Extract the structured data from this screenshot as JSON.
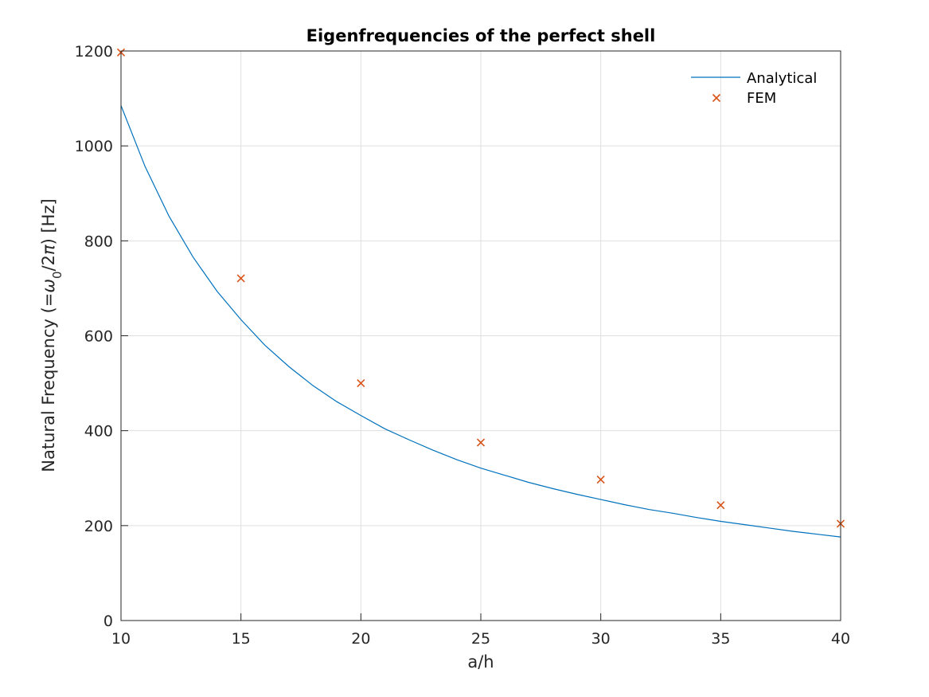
{
  "chart_data": {
    "type": "line",
    "title": "Eigenfrequencies of the perfect shell",
    "xlabel": "a/h",
    "ylabel_prefix": "Natural Frequency (=",
    "ylabel_omega": "ω",
    "ylabel_sub": "0",
    "ylabel_mid": "/2",
    "ylabel_pi": "π",
    "ylabel_suffix": ") [Hz]",
    "xlim": [
      10,
      40
    ],
    "ylim": [
      0,
      1200
    ],
    "xticks": [
      10,
      15,
      20,
      25,
      30,
      35,
      40
    ],
    "yticks": [
      0,
      200,
      400,
      600,
      800,
      1000,
      1200
    ],
    "xtick_labels": [
      "10",
      "15",
      "20",
      "25",
      "30",
      "35",
      "40"
    ],
    "ytick_labels": [
      "0",
      "200",
      "400",
      "600",
      "800",
      "1000",
      "1200"
    ],
    "grid": true,
    "legend_position": "top-right",
    "series": [
      {
        "name": "Analytical",
        "kind": "line",
        "color": "#0072BD",
        "x": [
          10,
          11,
          12,
          13,
          14,
          15,
          16,
          17,
          18,
          19,
          20,
          21,
          22,
          23,
          24,
          25,
          26,
          27,
          28,
          29,
          30,
          31,
          32,
          33,
          34,
          35,
          36,
          37,
          38,
          39,
          40
        ],
        "y": [
          1085,
          957,
          852,
          766,
          694,
          634,
          580,
          535,
          495,
          461,
          432,
          404,
          381,
          359,
          339,
          321,
          306,
          291,
          278,
          266,
          255,
          244,
          234,
          226,
          217,
          209,
          202,
          195,
          188,
          182,
          176
        ]
      },
      {
        "name": "FEM",
        "kind": "scatter",
        "marker": "x",
        "color": "#D95319",
        "x": [
          10,
          15,
          20,
          25,
          30,
          35,
          40
        ],
        "y": [
          1197,
          721,
          500,
          375,
          297,
          243,
          204
        ]
      }
    ]
  }
}
